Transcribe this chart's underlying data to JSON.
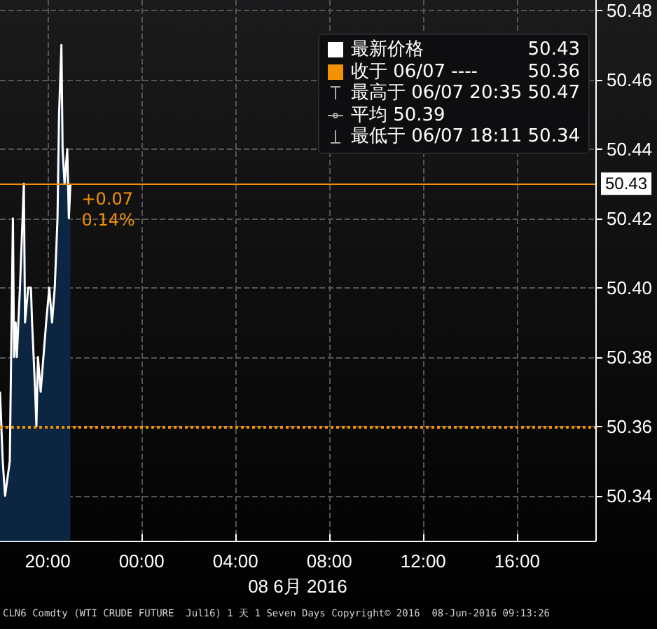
{
  "chart_data": {
    "type": "area",
    "xlabel": "08 6月 2016",
    "x": [
      "2016-06-07T17:58",
      "2016-06-07T18:05",
      "2016-06-07T18:11",
      "2016-06-07T18:23",
      "2016-06-07T18:31",
      "2016-06-07T18:34",
      "2016-06-07T18:38",
      "2016-06-07T18:41",
      "2016-06-07T18:49",
      "2016-06-07T18:59",
      "2016-06-07T19:02",
      "2016-06-07T19:10",
      "2016-06-07T19:17",
      "2016-06-07T19:20",
      "2016-06-07T19:28",
      "2016-06-07T19:31",
      "2016-06-07T19:35",
      "2016-06-07T19:42",
      "2016-06-07T19:49",
      "2016-06-07T19:56",
      "2016-06-07T20:04",
      "2016-06-07T20:11",
      "2016-06-07T20:18",
      "2016-06-07T20:25",
      "2016-06-07T20:29",
      "2016-06-07T20:35",
      "2016-06-07T20:38",
      "2016-06-07T20:43",
      "2016-06-07T20:50",
      "2016-06-07T20:54",
      "2016-06-07T20:58"
    ],
    "series": [
      {
        "name": "最新价格",
        "color": "#ffffff",
        "values": [
          50.37,
          50.35,
          50.34,
          50.35,
          50.42,
          50.38,
          50.39,
          50.38,
          50.4,
          50.43,
          50.39,
          50.4,
          50.4,
          50.39,
          50.37,
          50.36,
          50.38,
          50.37,
          50.38,
          50.39,
          50.4,
          50.39,
          50.4,
          50.42,
          50.45,
          50.47,
          50.44,
          50.43,
          50.44,
          50.42,
          50.43
        ]
      }
    ],
    "xlim": [
      "2016-06-07T17:58",
      "2016-06-08T19:20"
    ],
    "xticks": [
      {
        "value": "2016-06-07T20:00",
        "label": "20:00"
      },
      {
        "value": "2016-06-08T00:00",
        "label": "00:00"
      },
      {
        "value": "2016-06-08T04:00",
        "label": "04:00"
      },
      {
        "value": "2016-06-08T08:00",
        "label": "08:00"
      },
      {
        "value": "2016-06-08T12:00",
        "label": "12:00"
      },
      {
        "value": "2016-06-08T16:00",
        "label": "16:00"
      }
    ],
    "ylim": [
      50.327,
      50.483
    ],
    "yticks": [
      {
        "value": 50.34,
        "label": "50.34"
      },
      {
        "value": 50.36,
        "label": "50.36"
      },
      {
        "value": 50.38,
        "label": "50.38"
      },
      {
        "value": 50.4,
        "label": "50.40"
      },
      {
        "value": 50.42,
        "label": "50.42"
      },
      {
        "value": 50.44,
        "label": "50.44"
      },
      {
        "value": 50.46,
        "label": "50.46"
      },
      {
        "value": 50.48,
        "label": "50.48"
      }
    ],
    "ref_lines": [
      {
        "axis": "y",
        "value": 50.43,
        "label": "50.43",
        "color": "#f39200",
        "line_style": "solid"
      },
      {
        "axis": "y",
        "value": 50.36,
        "label": "收于 06/07 ----",
        "color": "#f39200",
        "line_style": "dotted"
      }
    ],
    "annotations": [
      "50.43",
      "50.36",
      "最高于 06/07 20:35 50.47",
      "平均 50.39",
      "最低于 06/07 18:11 50.34",
      "+0.07",
      "0.14%",
      "CLN6 Comdty (WTI CRUDE FUTURE  Jul16) 1 天 1 Seven Days Copyright© 2016  08-Jun-2016 09:13:26"
    ],
    "grid": true,
    "legend": "top right",
    "marker": "none"
  }
}
